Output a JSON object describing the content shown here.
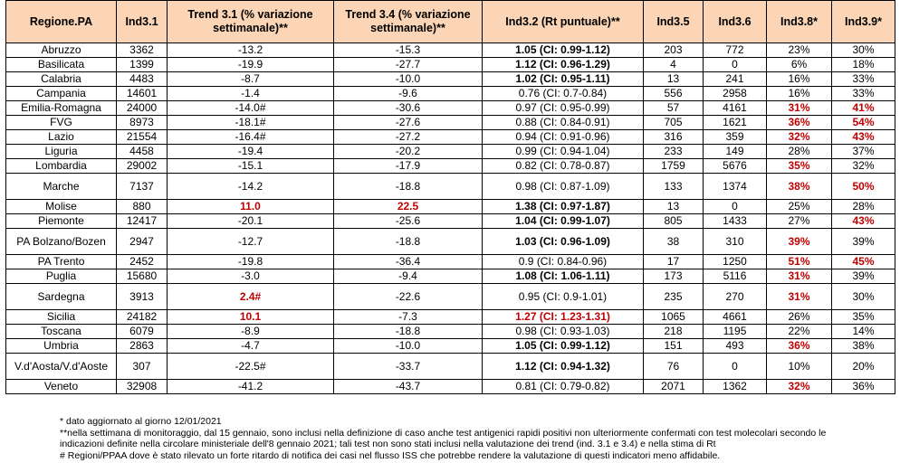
{
  "headers": [
    "Regione.PA",
    "Ind3.1",
    "Trend 3.1 (% variazione settimanale)**",
    "Trend 3.4 (% variazione settimanale)**",
    "Ind3.2 (Rt puntuale)**",
    "Ind3.5",
    "Ind3.6",
    "Ind3.8*",
    "Ind3.9*"
  ],
  "rows": [
    {
      "cells": [
        "Abruzzo",
        "3362",
        "-13.2",
        "-15.3",
        "1.05 (CI: 0.99-1.12)",
        "203",
        "772",
        "23%",
        "30%"
      ],
      "bold": [
        4
      ],
      "red": []
    },
    {
      "cells": [
        "Basilicata",
        "1399",
        "-19.9",
        "-27.7",
        "1.12 (CI: 0.96-1.29)",
        "4",
        "0",
        "6%",
        "18%"
      ],
      "bold": [
        4
      ],
      "red": []
    },
    {
      "cells": [
        "Calabria",
        "4483",
        "-8.7",
        "-10.0",
        "1.02 (CI: 0.95-1.11)",
        "13",
        "241",
        "16%",
        "33%"
      ],
      "bold": [
        4
      ],
      "red": []
    },
    {
      "cells": [
        "Campania",
        "14601",
        "-1.4",
        "-9.6",
        "0.76 (CI: 0.7-0.84)",
        "556",
        "2958",
        "16%",
        "33%"
      ],
      "bold": [],
      "red": []
    },
    {
      "cells": [
        "Emilia-Romagna",
        "24000",
        "-14.0#",
        "-30.6",
        "0.97 (CI: 0.95-0.99)",
        "57",
        "4161",
        "31%",
        "41%"
      ],
      "bold": [],
      "red": [
        7,
        8
      ]
    },
    {
      "cells": [
        "FVG",
        "8973",
        "-18.1#",
        "-27.6",
        "0.88 (CI: 0.84-0.91)",
        "705",
        "1621",
        "36%",
        "54%"
      ],
      "bold": [],
      "red": [
        7,
        8
      ]
    },
    {
      "cells": [
        "Lazio",
        "21554",
        "-16.4#",
        "-27.2",
        "0.94 (CI: 0.91-0.96)",
        "316",
        "359",
        "32%",
        "43%"
      ],
      "bold": [],
      "red": [
        7,
        8
      ]
    },
    {
      "cells": [
        "Liguria",
        "4458",
        "-19.4",
        "-20.2",
        "0.99 (CI: 0.94-1.04)",
        "233",
        "149",
        "28%",
        "37%"
      ],
      "bold": [],
      "red": []
    },
    {
      "cells": [
        "Lombardia",
        "29002",
        "-15.1",
        "-17.9",
        "0.82 (CI: 0.78-0.87)",
        "1759",
        "5676",
        "35%",
        "32%"
      ],
      "bold": [],
      "red": [
        7
      ]
    },
    {
      "cells": [
        "Marche",
        "7137",
        "-14.2",
        "-18.8",
        "0.98 (CI: 0.87-1.09)",
        "133",
        "1374",
        "38%",
        "50%"
      ],
      "bold": [],
      "red": [
        7,
        8
      ],
      "tall": true
    },
    {
      "cells": [
        "Molise",
        "880",
        "11.0",
        "22.5",
        "1.38 (CI: 0.97-1.87)",
        "13",
        "0",
        "25%",
        "28%"
      ],
      "bold": [
        4
      ],
      "red": [
        2,
        3
      ]
    },
    {
      "cells": [
        "Piemonte",
        "12417",
        "-20.1",
        "-25.6",
        "1.04 (CI: 0.99-1.07)",
        "805",
        "1433",
        "27%",
        "43%"
      ],
      "bold": [
        4
      ],
      "red": [
        8
      ]
    },
    {
      "cells": [
        "PA Bolzano/Bozen",
        "2947",
        "-12.7",
        "-18.8",
        "1.03 (CI: 0.96-1.09)",
        "38",
        "310",
        "39%",
        "39%"
      ],
      "bold": [
        4
      ],
      "red": [
        7
      ],
      "tall": true
    },
    {
      "cells": [
        "PA Trento",
        "2452",
        "-19.8",
        "-36.4",
        "0.9 (CI: 0.84-0.96)",
        "17",
        "1250",
        "51%",
        "45%"
      ],
      "bold": [],
      "red": [
        7,
        8
      ]
    },
    {
      "cells": [
        "Puglia",
        "15680",
        "-3.0",
        "-9.4",
        "1.08 (CI: 1.06-1.11)",
        "173",
        "5116",
        "31%",
        "39%"
      ],
      "bold": [
        4
      ],
      "red": [
        7
      ]
    },
    {
      "cells": [
        "Sardegna",
        "3913",
        "2.4#",
        "-22.6",
        "0.95 (CI: 0.9-1.01)",
        "235",
        "270",
        "31%",
        "30%"
      ],
      "bold": [],
      "red": [
        2,
        7
      ],
      "tall": true
    },
    {
      "cells": [
        "Sicilia",
        "24182",
        "10.1",
        "-7.3",
        "1.27 (CI: 1.23-1.31)",
        "1065",
        "4661",
        "26%",
        "35%"
      ],
      "bold": [],
      "red": [
        2,
        4
      ]
    },
    {
      "cells": [
        "Toscana",
        "6079",
        "-8.9",
        "-18.8",
        "0.98 (CI: 0.93-1.03)",
        "218",
        "1195",
        "22%",
        "14%"
      ],
      "bold": [],
      "red": []
    },
    {
      "cells": [
        "Umbria",
        "2863",
        "-4.7",
        "-10.0",
        "1.05 (CI: 0.99-1.12)",
        "151",
        "493",
        "36%",
        "38%"
      ],
      "bold": [
        4
      ],
      "red": [
        7
      ]
    },
    {
      "cells": [
        "V.d'Aosta/V.d'Aoste",
        "307",
        "-22.5#",
        "-33.7",
        "1.12 (CI: 0.94-1.32)",
        "76",
        "0",
        "10%",
        "20%"
      ],
      "bold": [
        4
      ],
      "red": [],
      "tall": true
    },
    {
      "cells": [
        "Veneto",
        "32908",
        "-41.2",
        "-43.7",
        "0.81 (CI: 0.79-0.82)",
        "2071",
        "1362",
        "32%",
        "36%"
      ],
      "bold": [],
      "red": [
        7
      ]
    }
  ],
  "notes": [
    "* dato aggiornato al giorno 12/01/2021",
    "**nella settimana di monitoraggio, dal 15 gennaio, sono inclusi nella definizione di caso anche test antigenici rapidi positivi non ulteriormente confermati con test molecolari secondo le",
    "indicazioni definite nella circolare ministeriale dell'8 gennaio 2021; tali test non sono stati inclusi nella valutazione dei trend (ind. 3.1 e 3.4) e nella stima di Rt",
    "# Regioni/PPAA dove è stato rilevato un forte ritardo di notifica dei casi nel flusso ISS che potrebbe rendere la valutazione di questi indicatori meno affidabile."
  ]
}
